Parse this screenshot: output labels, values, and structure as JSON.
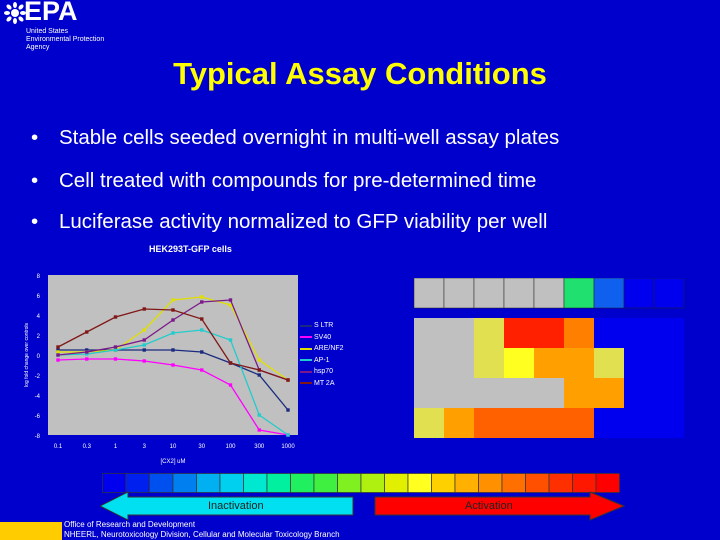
{
  "logo": {
    "text": "EPA",
    "subtitle_lines": [
      "United States",
      "Environmental Protection",
      "Agency"
    ]
  },
  "title": "Typical Assay Conditions",
  "bullets": [
    "Stable cells seeded overnight in multi-well assay plates",
    "Cell treated with compounds for pre-determined time",
    "Luciferase activity normalized to GFP viability per well"
  ],
  "chart_data": {
    "type": "line",
    "title": "HEK293T-GFP cells",
    "xlabel": "[CX2] uM",
    "ylabel": "log fold change over controls",
    "categories": [
      "0.1",
      "0.3",
      "1",
      "3",
      "10",
      "30",
      "100",
      "300",
      "1000"
    ],
    "y_ticks": [
      "8",
      "6",
      "4",
      "2",
      "0",
      "-2",
      "-4",
      "-6",
      "-8"
    ],
    "ylim": [
      -8,
      8
    ],
    "grid": false,
    "legend_position": "right",
    "series": [
      {
        "name": "S LTR",
        "color": "#1a2a80",
        "values": [
          0.5,
          0.5,
          0.5,
          0.5,
          0.5,
          0.3,
          -0.8,
          -2,
          -5.5
        ]
      },
      {
        "name": "SV40",
        "color": "#ff00ff",
        "values": [
          -0.5,
          -0.4,
          -0.4,
          -0.6,
          -1,
          -1.5,
          -3,
          -7.5,
          -8
        ]
      },
      {
        "name": "ARE/NF2",
        "color": "#e0e000",
        "values": [
          0.3,
          0.3,
          0.5,
          2.5,
          5.5,
          5.8,
          5,
          -0.5,
          -2.5
        ]
      },
      {
        "name": "AP-1",
        "color": "#22cccc",
        "values": [
          0,
          0.1,
          0.5,
          1,
          2.2,
          2.5,
          1.5,
          -6,
          -8
        ]
      },
      {
        "name": "hsp70",
        "color": "#7a1a88",
        "values": [
          0,
          0.3,
          0.8,
          1.5,
          3.5,
          5.3,
          5.5,
          -1.5,
          -2.5
        ]
      },
      {
        "name": "MT 2A",
        "color": "#801818",
        "values": [
          0.8,
          2.3,
          3.8,
          4.6,
          4.5,
          3.6,
          -0.8,
          -1.5,
          -2.5
        ]
      }
    ]
  },
  "heatmap": {
    "rows": [
      [
        "#c0c0c0",
        "#c0c0c0",
        "#c0c0c0",
        "#c0c0c0",
        "#c0c0c0",
        "#20e070",
        "#1060f0",
        "#0000ee",
        "#0000ee"
      ],
      [
        "#c0c0c0",
        "#c0c0c0",
        "#e0e050",
        "#ff2000",
        "#ff2000",
        "#ff8000",
        "#0000ee",
        "#0000ee",
        "#0000ee"
      ],
      [
        "#c0c0c0",
        "#c0c0c0",
        "#e0e050",
        "#ffff20",
        "#ffa000",
        "#ffa000",
        "#e0e050",
        "#0000ee",
        "#0000ee"
      ],
      [
        "#c0c0c0",
        "#c0c0c0",
        "#c0c0c0",
        "#c0c0c0",
        "#c0c0c0",
        "#ffa000",
        "#ffa000",
        "#0000ee",
        "#0000ee"
      ],
      [
        "#e0e050",
        "#ffa000",
        "#ff6000",
        "#ff6000",
        "#ff6000",
        "#ff6000",
        "#0000ee",
        "#0000ee",
        "#0000ee"
      ]
    ]
  },
  "scale_colors": [
    "#0000ee",
    "#0020f0",
    "#0050f0",
    "#0080f0",
    "#00b0f0",
    "#00d0f0",
    "#00e8d0",
    "#00f0a0",
    "#20f060",
    "#40f040",
    "#80f020",
    "#b0f010",
    "#e0f000",
    "#ffff20",
    "#ffd000",
    "#ffb000",
    "#ff9000",
    "#ff7000",
    "#ff5000",
    "#ff3000",
    "#ff1800",
    "#ff0000"
  ],
  "arrows": {
    "left_label": "Inactivation",
    "right_label": "Activation",
    "left_color": "#00e0f0",
    "right_color": "#ff0000"
  },
  "footer": {
    "line1": "Office of Research and Development",
    "line2": "NHEERL, Neurotoxicology Division, Cellular and Molecular Toxicology Branch"
  }
}
